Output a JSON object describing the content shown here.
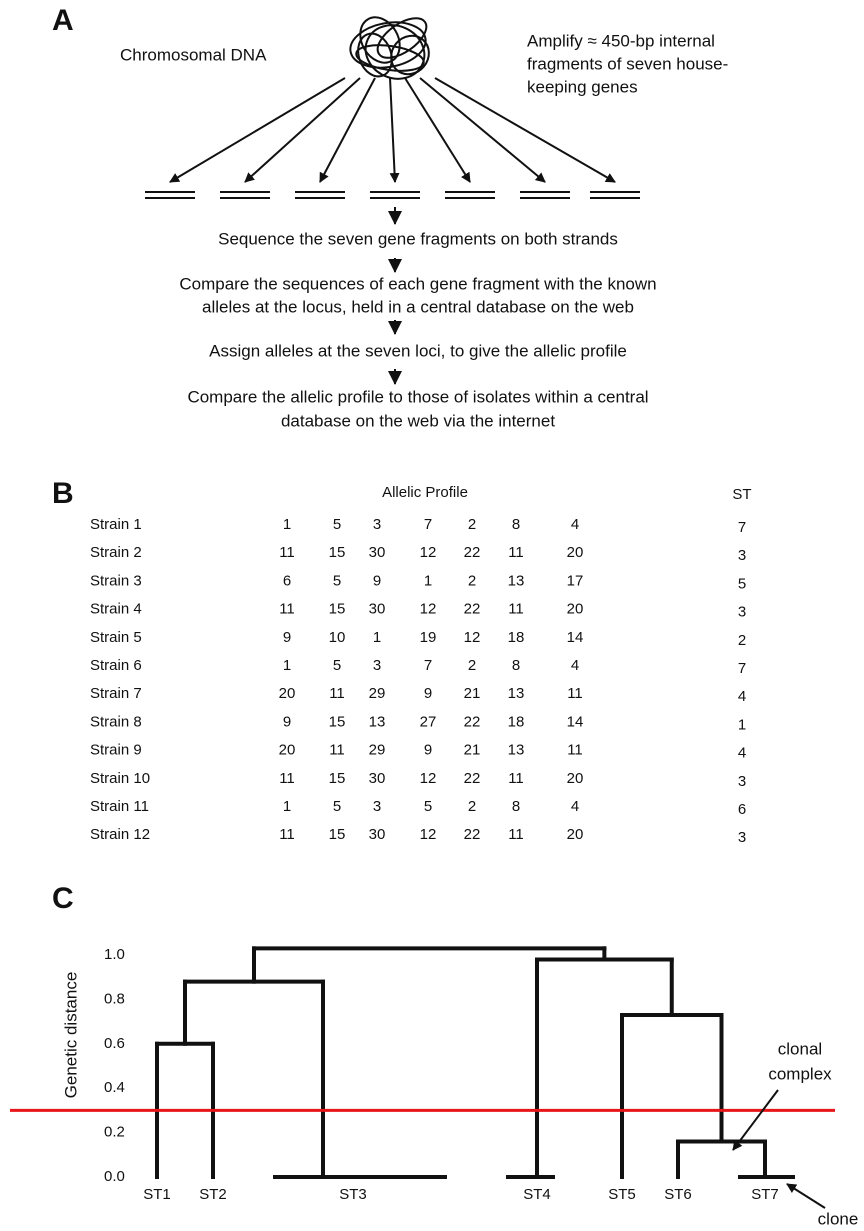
{
  "panel_a": {
    "label": "A",
    "dna_label": "Chromosomal DNA",
    "amplify_note": [
      "Amplify ≈ 450-bp internal",
      "fragments of seven house-",
      "keeping genes"
    ],
    "steps": [
      [
        "Sequence the seven gene fragments on both strands"
      ],
      [
        "Compare the sequences of each gene fragment with the known",
        "alleles at the locus, held in a central database on the web"
      ],
      [
        "Assign alleles at the seven loci, to give the allelic profile"
      ],
      [
        "Compare the allelic profile to those of isolates within a central",
        "database on the web via the internet"
      ]
    ]
  },
  "panel_b": {
    "label": "B",
    "profile_header": "Allelic Profile",
    "st_header": "ST",
    "rows": [
      {
        "strain": "Strain 1",
        "profile": [
          1,
          5,
          3,
          7,
          2,
          8,
          4
        ],
        "st": 7
      },
      {
        "strain": "Strain 2",
        "profile": [
          11,
          15,
          30,
          12,
          22,
          11,
          20
        ],
        "st": 3
      },
      {
        "strain": "Strain 3",
        "profile": [
          6,
          5,
          9,
          1,
          2,
          13,
          17
        ],
        "st": 5
      },
      {
        "strain": "Strain 4",
        "profile": [
          11,
          15,
          30,
          12,
          22,
          11,
          20
        ],
        "st": 3
      },
      {
        "strain": "Strain 5",
        "profile": [
          9,
          10,
          1,
          19,
          12,
          18,
          14
        ],
        "st": 2
      },
      {
        "strain": "Strain 6",
        "profile": [
          1,
          5,
          3,
          7,
          2,
          8,
          4
        ],
        "st": 7
      },
      {
        "strain": "Strain 7",
        "profile": [
          20,
          11,
          29,
          9,
          21,
          13,
          11
        ],
        "st": 4
      },
      {
        "strain": "Strain 8",
        "profile": [
          9,
          15,
          13,
          27,
          22,
          18,
          14
        ],
        "st": 1
      },
      {
        "strain": "Strain 9",
        "profile": [
          20,
          11,
          29,
          9,
          21,
          13,
          11
        ],
        "st": 4
      },
      {
        "strain": "Strain 10",
        "profile": [
          11,
          15,
          30,
          12,
          22,
          11,
          20
        ],
        "st": 3
      },
      {
        "strain": "Strain 11",
        "profile": [
          1,
          5,
          3,
          5,
          2,
          8,
          4
        ],
        "st": 6
      },
      {
        "strain": "Strain 12",
        "profile": [
          11,
          15,
          30,
          12,
          22,
          11,
          20
        ],
        "st": 3
      }
    ]
  },
  "panel_c": {
    "label": "C",
    "y_axis_label": "Genetic distance",
    "ylim": [
      0,
      1
    ],
    "yticks": [
      {
        "value": 0,
        "label": "0.0"
      },
      {
        "value": 0.2,
        "label": "0.2"
      },
      {
        "value": 0.4,
        "label": "0.4"
      },
      {
        "value": 0.6,
        "label": "0.6"
      },
      {
        "value": 0.8,
        "label": "0.8"
      },
      {
        "value": 1,
        "label": "1.0"
      }
    ],
    "leaves": [
      "ST1",
      "ST2",
      "ST3",
      "ST4",
      "ST5",
      "ST6",
      "ST7"
    ],
    "merge_heights": [
      0.6,
      0.88,
      0.16,
      0.73,
      0.98,
      1.03
    ],
    "cut_height": 0.3,
    "cut_color": "#e8161b",
    "annotations": {
      "clonal_complex": [
        "clonal",
        "complex"
      ],
      "clone": "clone"
    }
  }
}
